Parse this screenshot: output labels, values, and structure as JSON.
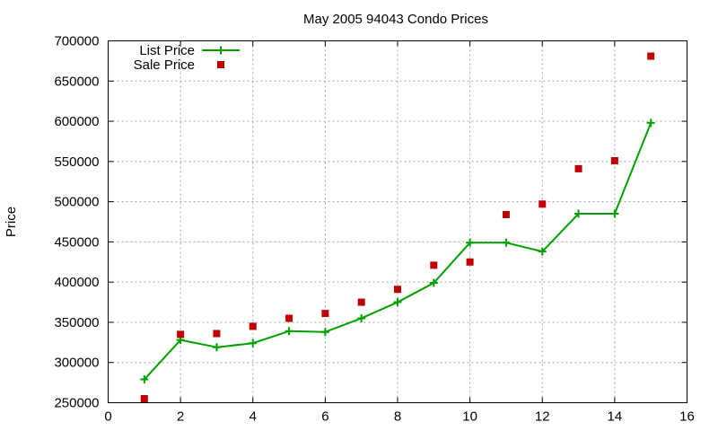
{
  "chart_data": {
    "type": "line",
    "title": "May 2005 94043 Condo Prices",
    "xlabel": "",
    "ylabel": "Price",
    "xlim": [
      0,
      16
    ],
    "ylim": [
      250000,
      700000
    ],
    "x_ticks": [
      0,
      2,
      4,
      6,
      8,
      10,
      12,
      14,
      16
    ],
    "y_ticks": [
      250000,
      300000,
      350000,
      400000,
      450000,
      500000,
      550000,
      600000,
      650000,
      700000
    ],
    "x_tick_labels": [
      "0",
      "2",
      "4",
      "6",
      "8",
      "10",
      "12",
      "14",
      "16"
    ],
    "y_tick_labels": [
      "250000",
      "300000",
      "350000",
      "400000",
      "450000",
      "500000",
      "550000",
      "600000",
      "650000",
      "700000"
    ],
    "grid": true,
    "legend_position": "top-left",
    "series": [
      {
        "name": "List Price",
        "style": "linespoints",
        "marker": "plus",
        "color": "#00a000",
        "x": [
          1,
          2,
          3,
          4,
          5,
          6,
          7,
          8,
          9,
          10,
          11,
          12,
          13,
          14,
          15
        ],
        "y": [
          279000,
          328000,
          319000,
          324000,
          339000,
          338000,
          355000,
          375000,
          399000,
          449000,
          449000,
          438000,
          485000,
          485000,
          598000
        ]
      },
      {
        "name": "Sale Price",
        "style": "points",
        "marker": "square",
        "color": "#c00000",
        "x": [
          1,
          2,
          3,
          4,
          5,
          6,
          7,
          8,
          9,
          10,
          11,
          12,
          13,
          14,
          15
        ],
        "y": [
          255000,
          335000,
          336000,
          345000,
          355000,
          361000,
          375000,
          391000,
          421000,
          425000,
          484000,
          497000,
          541000,
          551000,
          681000
        ]
      }
    ]
  }
}
